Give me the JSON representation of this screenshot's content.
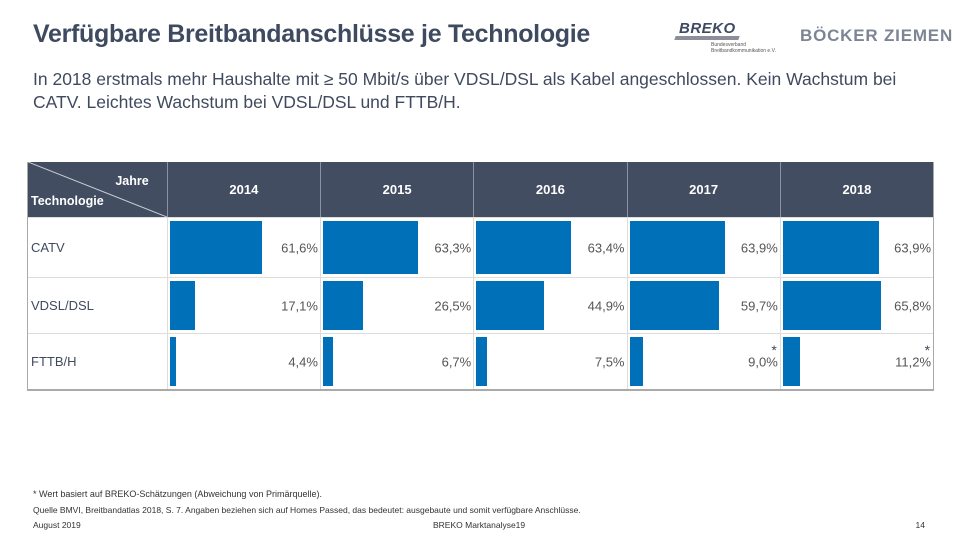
{
  "header": {
    "title": "Verfügbare Breitbandanschlüsse je Technologie",
    "subtitle": "In 2018 erstmals mehr Haushalte mit ≥ 50 Mbit/s über VDSL/DSL als Kabel angeschlossen. Kein Wachstum bei CATV. Leichtes Wachstum bei VDSL/DSL und FTTB/H.",
    "logo_breko": "BREKO",
    "logo_breko_sub1": "Bundesverband",
    "logo_breko_sub2": "Breitbandkommunikation e.V.",
    "logo_bz": "BÖCKER ZIEMEN"
  },
  "chart_data": {
    "type": "table",
    "title": "Verfügbare Breitbandanschlüsse je Technologie",
    "corner_col_label": "Jahre",
    "corner_row_label": "Technologie",
    "categories": [
      "2014",
      "2015",
      "2016",
      "2017",
      "2018"
    ],
    "series": [
      {
        "name": "CATV",
        "values": [
          61.6,
          63.3,
          63.4,
          63.9,
          63.9
        ],
        "labels": [
          "61,6%",
          "63,3%",
          "63,4%",
          "63,9%",
          "63,9%"
        ],
        "estimated": [
          false,
          false,
          false,
          false,
          false
        ]
      },
      {
        "name": "VDSL/DSL",
        "values": [
          17.1,
          26.5,
          44.9,
          59.7,
          65.8
        ],
        "labels": [
          "17,1%",
          "26,5%",
          "44,9%",
          "59,7%",
          "65,8%"
        ],
        "estimated": [
          false,
          false,
          false,
          false,
          false
        ]
      },
      {
        "name": "FTTB/H",
        "values": [
          4.4,
          6.7,
          7.5,
          9.0,
          11.2
        ],
        "labels": [
          "4,4%",
          "6,7%",
          "7,5%",
          "9,0%",
          "11,2%"
        ],
        "estimated": [
          false,
          false,
          false,
          true,
          true
        ]
      }
    ],
    "unit": "%",
    "bar_color": "#0070b8",
    "header_color": "#434d61",
    "estimate_marker": "*"
  },
  "footer": {
    "note": "* Wert basiert auf BREKO-Schätzungen (Abweichung von Primärquelle).",
    "source": "Quelle BMVI, Breitbandatlas 2018, S. 7. Angaben beziehen sich auf Homes Passed, das bedeutet: ausgebaute und somit verfügbare Anschlüsse.",
    "date": "August 2019",
    "center": "BREKO Marktanalyse19",
    "page": "14"
  }
}
